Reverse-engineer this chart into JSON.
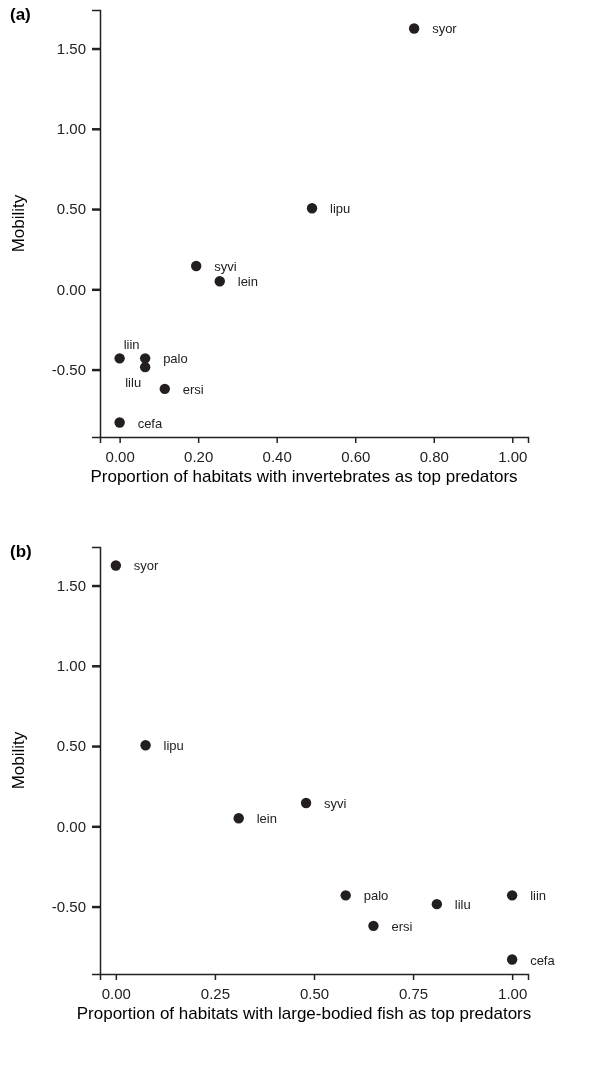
{
  "chart_data": [
    {
      "type": "scatter",
      "title": "(a)",
      "xlabel": "Proportion of habitats with invertebrates as top predators",
      "ylabel": "Mobility",
      "x": [
        0.75,
        0.49,
        0.195,
        0.255,
        0.0,
        0.065,
        0.065,
        0.115,
        0.0
      ],
      "values": [
        1.625,
        0.505,
        0.145,
        0.05,
        -0.43,
        -0.43,
        -0.485,
        -0.62,
        -0.83
      ],
      "color": "#231f20",
      "marker": "circle",
      "xlim": [
        -0.05,
        1.04
      ],
      "ylim": [
        -0.92,
        1.74
      ],
      "xticks": [
        {
          "value": 0,
          "label": "0.00"
        },
        {
          "value": 0.2,
          "label": "0.20"
        },
        {
          "value": 0.4,
          "label": "0.40"
        },
        {
          "value": 0.6,
          "label": "0.60"
        },
        {
          "value": 0.8,
          "label": "0.80"
        },
        {
          "value": 1,
          "label": "1.00"
        }
      ],
      "yticks": [
        {
          "value": -0.5,
          "label": "-0.50"
        },
        {
          "value": 0,
          "label": "0.00"
        },
        {
          "value": 0.5,
          "label": "0.50"
        },
        {
          "value": 1,
          "label": "1.00"
        },
        {
          "value": 1.5,
          "label": "1.50"
        }
      ],
      "grid": false,
      "annotations": [
        {
          "text": "syor",
          "x": 0.75,
          "y": 1.625
        },
        {
          "text": "lipu",
          "x": 0.49,
          "y": 0.505
        },
        {
          "text": "syvi",
          "x": 0.195,
          "y": 0.145
        },
        {
          "text": "lein",
          "x": 0.255,
          "y": 0.05
        },
        {
          "text": "liin",
          "x": 0.0,
          "y": -0.43
        },
        {
          "text": "palo",
          "x": 0.065,
          "y": -0.43
        },
        {
          "text": "lilu",
          "x": 0.065,
          "y": -0.485
        },
        {
          "text": "ersi",
          "x": 0.115,
          "y": -0.62
        },
        {
          "text": "cefa",
          "x": 0.0,
          "y": -0.83
        }
      ]
    },
    {
      "type": "scatter",
      "title": "(b)",
      "xlabel": "Proportion of habitats with large-bodied fish as top predators",
      "ylabel": "Mobility",
      "x": [
        0.0,
        0.075,
        0.31,
        0.48,
        0.58,
        0.65,
        0.81,
        1.0,
        1.0
      ],
      "values": [
        1.625,
        0.505,
        0.05,
        0.145,
        -0.43,
        -0.62,
        -0.485,
        -0.43,
        -0.83
      ],
      "color": "#231f20",
      "marker": "circle",
      "xlim": [
        -0.04,
        1.04
      ],
      "ylim": [
        -0.92,
        1.74
      ],
      "xticks": [
        {
          "value": 0,
          "label": "0.00"
        },
        {
          "value": 0.25,
          "label": "0.25"
        },
        {
          "value": 0.5,
          "label": "0.50"
        },
        {
          "value": 0.75,
          "label": "0.75"
        },
        {
          "value": 1,
          "label": "1.00"
        }
      ],
      "yticks": [
        {
          "value": -0.5,
          "label": "-0.50"
        },
        {
          "value": 0,
          "label": "0.00"
        },
        {
          "value": 0.5,
          "label": "0.50"
        },
        {
          "value": 1,
          "label": "1.00"
        },
        {
          "value": 1.5,
          "label": "1.50"
        }
      ],
      "grid": false,
      "annotations": [
        {
          "text": "syor",
          "x": 0.0,
          "y": 1.625
        },
        {
          "text": "lipu",
          "x": 0.075,
          "y": 0.505
        },
        {
          "text": "lein",
          "x": 0.31,
          "y": 0.05
        },
        {
          "text": "syvi",
          "x": 0.48,
          "y": 0.145
        },
        {
          "text": "palo",
          "x": 0.58,
          "y": -0.43
        },
        {
          "text": "ersi",
          "x": 0.65,
          "y": -0.62
        },
        {
          "text": "lilu",
          "x": 0.81,
          "y": -0.485
        },
        {
          "text": "liin",
          "x": 1.0,
          "y": -0.43
        },
        {
          "text": "cefa",
          "x": 1.0,
          "y": -0.83
        }
      ]
    }
  ]
}
